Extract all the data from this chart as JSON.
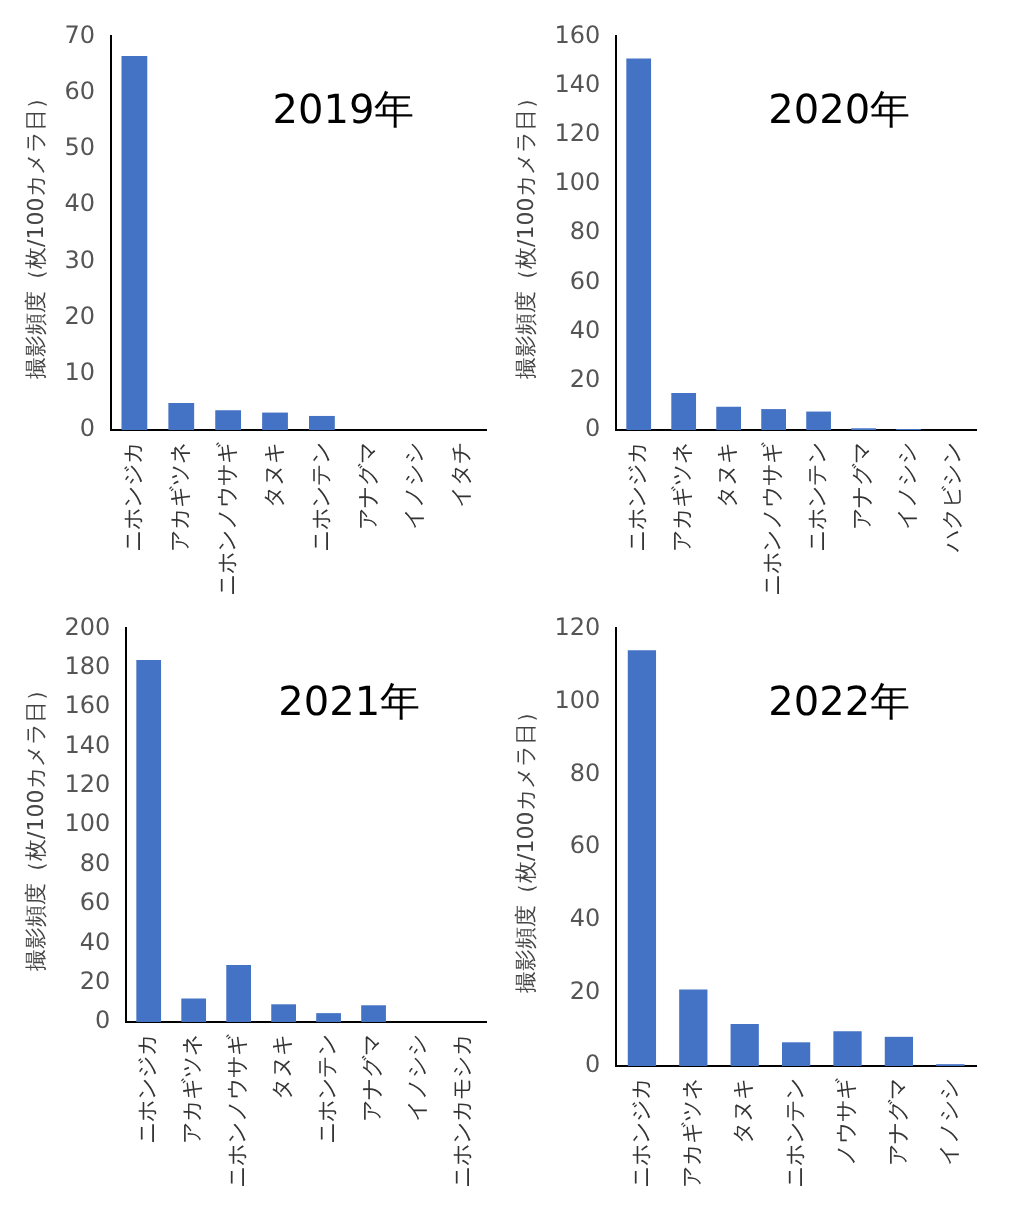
{
  "chart_data": [
    {
      "type": "bar",
      "title": "2019年",
      "ylabel": "撮影頻度（枚/100カメラ日）",
      "categories": [
        "ニホンジカ",
        "アカギツネ",
        "ニホンノウサギ",
        "タヌキ",
        "ニホンテン",
        "アナグマ",
        "イノシシ",
        "イタチ"
      ],
      "values": [
        66.5,
        4.8,
        3.5,
        3.1,
        2.5,
        0,
        0,
        0
      ],
      "color": "#4472c4",
      "ylim": [
        0,
        70
      ],
      "yticks": [
        0,
        10,
        20,
        30,
        40,
        50,
        60,
        70
      ],
      "grid": false,
      "legend": false
    },
    {
      "type": "bar",
      "title": "2020年",
      "ylabel": "撮影頻度（枚/100カメラ日）",
      "categories": [
        "ニホンジカ",
        "アカギツネ",
        "タヌキ",
        "ニホンノウサギ",
        "ニホンテン",
        "アナグマ",
        "イノシシ",
        "ハクビシン"
      ],
      "values": [
        151,
        15,
        9.5,
        8.5,
        7.5,
        0.7,
        0.4,
        0
      ],
      "color": "#4472c4",
      "ylim": [
        0,
        160
      ],
      "yticks": [
        0,
        20,
        40,
        60,
        80,
        100,
        120,
        140,
        160
      ],
      "grid": false,
      "legend": false
    },
    {
      "type": "bar",
      "title": "2021年",
      "ylabel": "撮影頻度（枚/100カメラ日）",
      "categories": [
        "ニホンジカ",
        "アカギツネ",
        "ニホンノウサギ",
        "タヌキ",
        "ニホンテン",
        "アナグマ",
        "イノシシ",
        "ニホンカモシカ"
      ],
      "values": [
        184,
        12,
        29,
        9,
        4.5,
        8.5,
        0,
        0
      ],
      "color": "#4472c4",
      "ylim": [
        0,
        200
      ],
      "yticks": [
        0,
        20,
        40,
        60,
        80,
        100,
        120,
        140,
        160,
        180,
        200
      ],
      "grid": false,
      "legend": false
    },
    {
      "type": "bar",
      "title": "2022年",
      "ylabel": "撮影頻度（枚/100カメラ日）",
      "categories": [
        "ニホンジカ",
        "アカギツネ",
        "タヌキ",
        "ニホンテン",
        "ノウサギ",
        "アナグマ",
        "イノシシ"
      ],
      "values": [
        114,
        21,
        11.5,
        6.5,
        9.5,
        8,
        0.5
      ],
      "color": "#4472c4",
      "ylim": [
        0,
        120
      ],
      "yticks": [
        0,
        20,
        40,
        60,
        80,
        100,
        120
      ],
      "grid": false,
      "legend": false
    }
  ]
}
